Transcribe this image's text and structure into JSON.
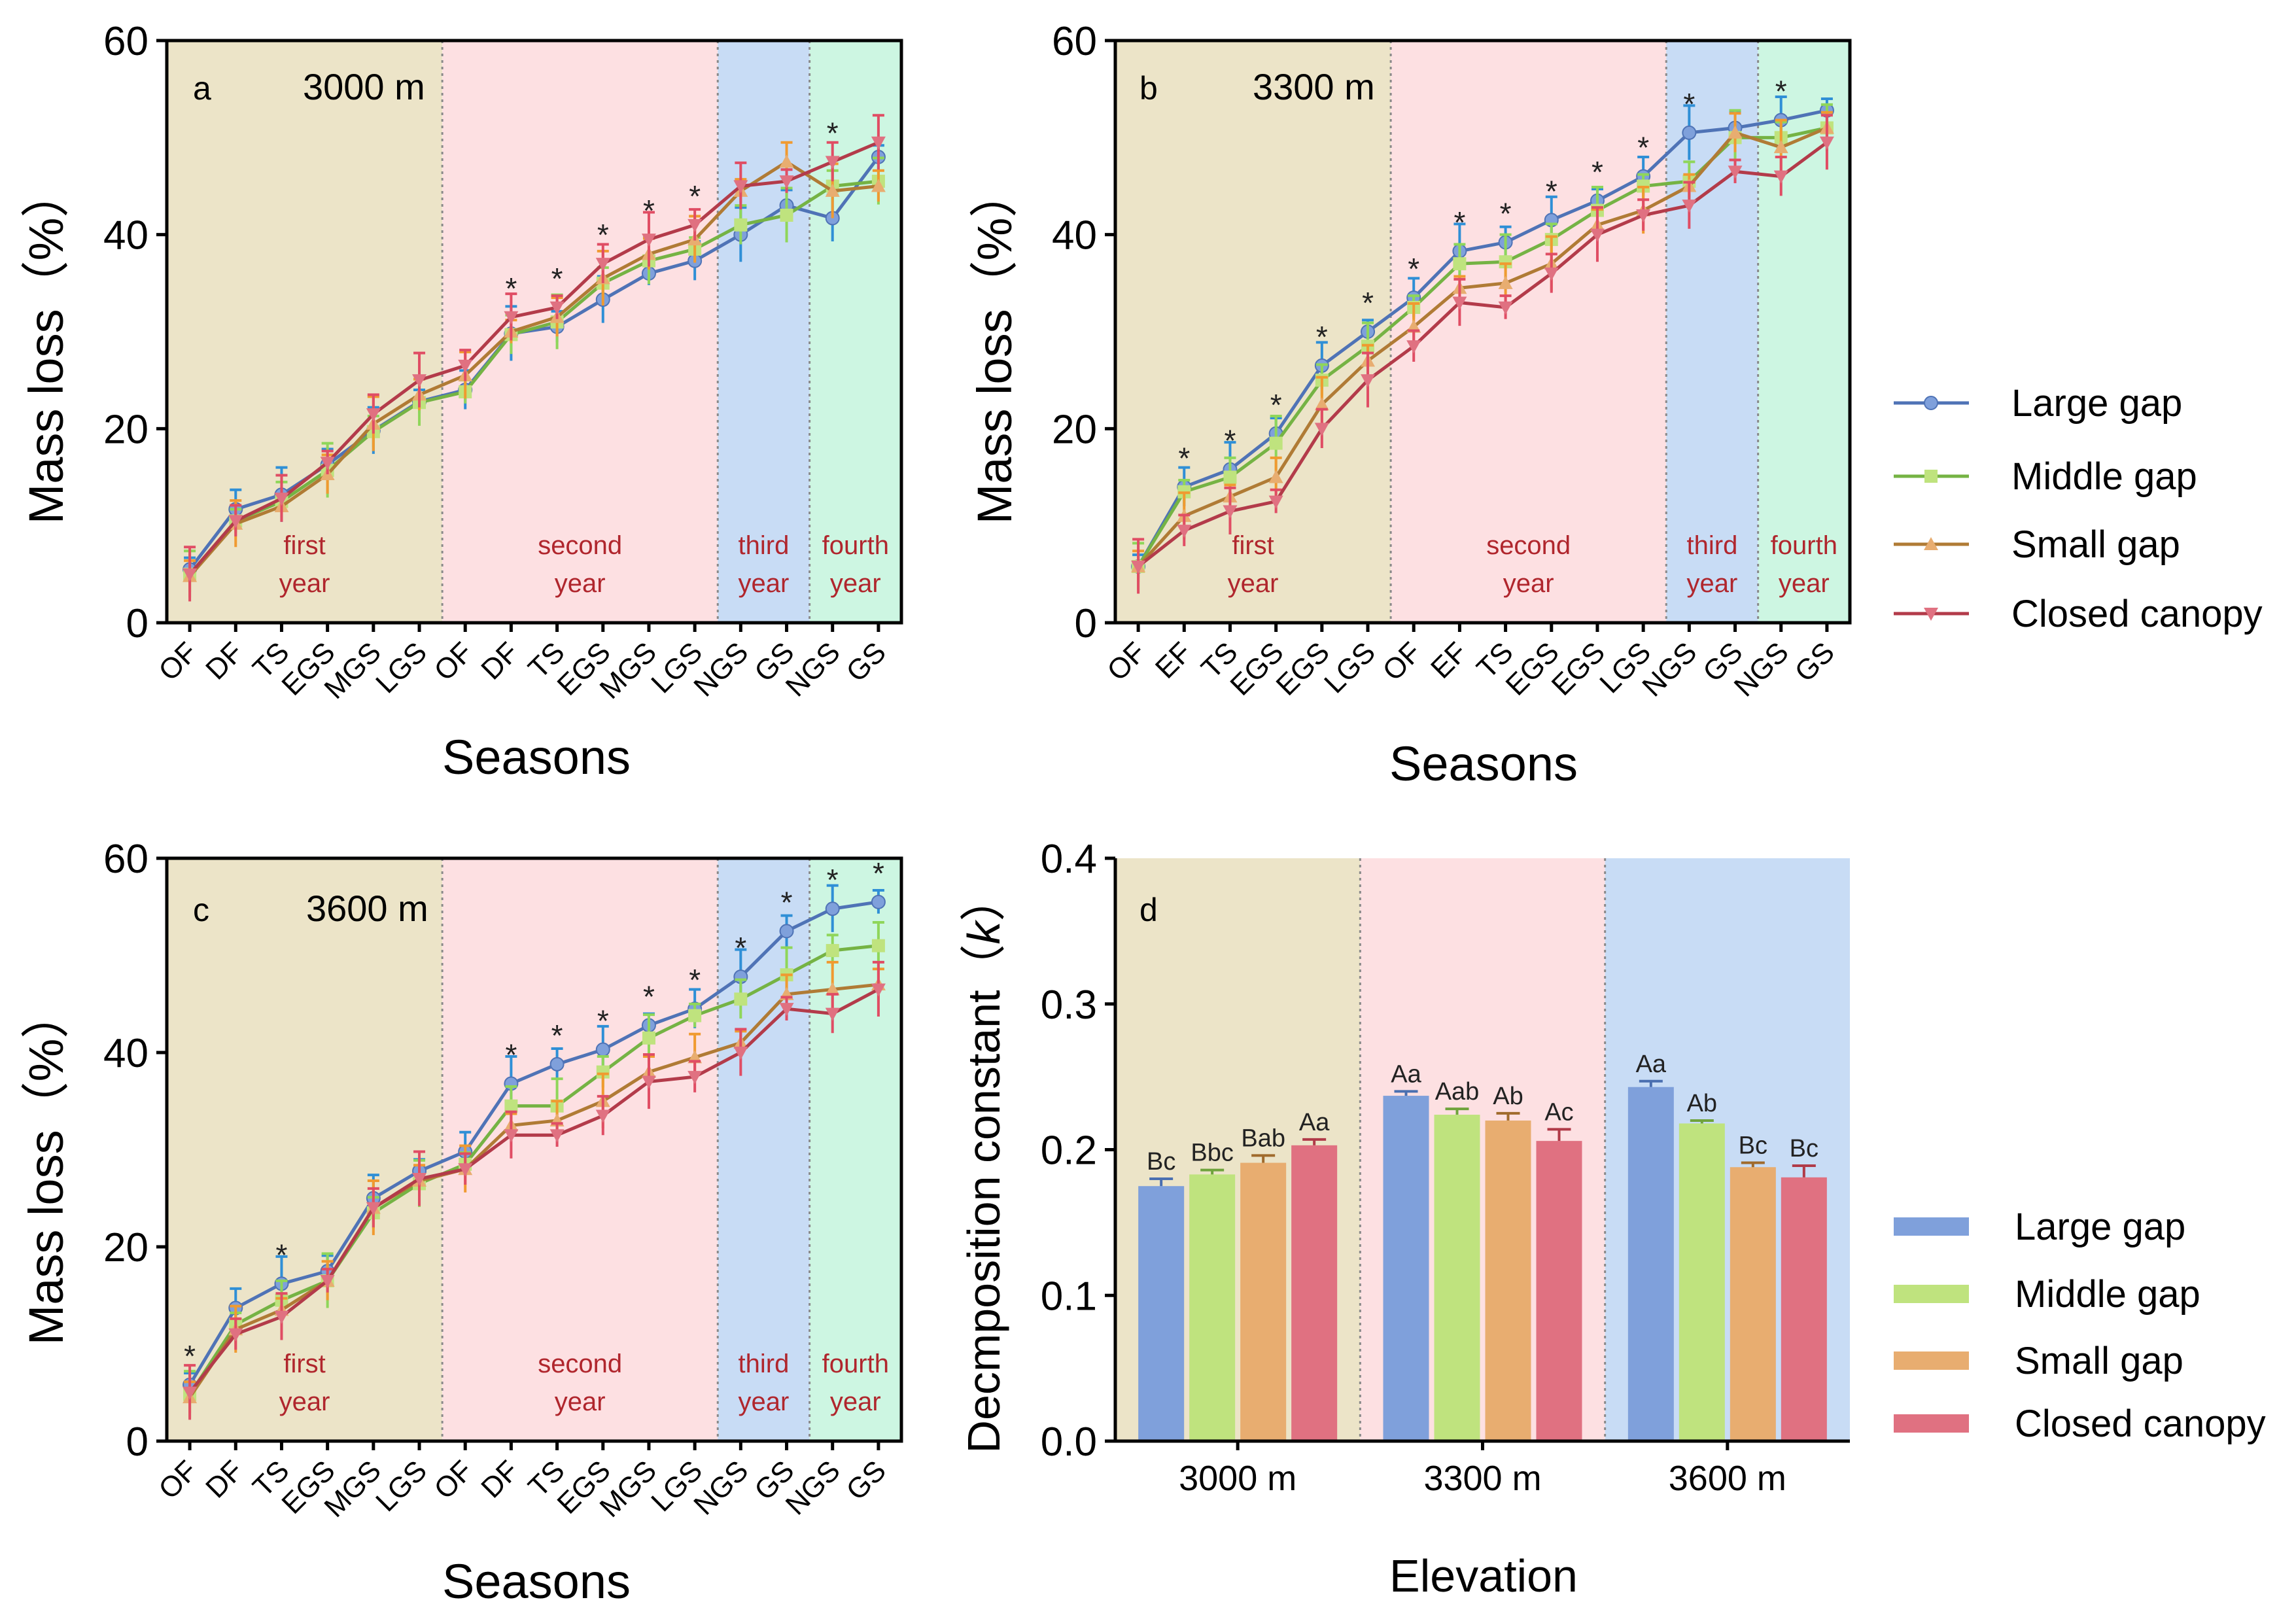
{
  "colors": {
    "large": "#4f73b6",
    "middle": "#75b344",
    "small": "#b07b35",
    "closed": "#b33b4a",
    "large_marker": "#7fa0db",
    "middle_marker": "#bfe37e",
    "small_marker": "#e8ad70",
    "closed_marker": "#e07181",
    "err_large": "#2f8fd6",
    "err_middle": "#8fd65a",
    "err_small": "#f09a30",
    "err_closed": "#e04d64",
    "band_first": "#ece4c8",
    "band_second": "#fde0e2",
    "band_third": "#c8dcf5",
    "band_fourth": "#cdf6e2",
    "year_text": "#b0262d"
  },
  "legend_top": [
    "Large gap",
    "Middle gap",
    "Small gap",
    "Closed canopy"
  ],
  "legend_bottom": [
    "Large gap",
    "Middle gap",
    "Small gap",
    "Closed canopy"
  ],
  "chart_data": [
    {
      "type": "line",
      "panel": "a",
      "elevation_label": "3000 m",
      "xlabel": "Seasons",
      "ylabel": "Mass loss（%）",
      "ylim": [
        0,
        60
      ],
      "yticks": [
        "0",
        "20",
        "40",
        "60"
      ],
      "categories": [
        "OF",
        "DF",
        "TS",
        "EGS",
        "MGS",
        "LGS",
        "OF",
        "DF",
        "TS",
        "EGS",
        "MGS",
        "LGS",
        "NGS",
        "GS",
        "NGS",
        "GS"
      ],
      "year_bands": [
        {
          "line1": "first",
          "line2": "year",
          "from": 0,
          "to": 5
        },
        {
          "line1": "second",
          "line2": "year",
          "from": 6,
          "to": 11
        },
        {
          "line1": "third",
          "line2": "year",
          "from": 12,
          "to": 13
        },
        {
          "line1": "fourth",
          "line2": "year",
          "from": 14,
          "to": 15
        }
      ],
      "series": [
        {
          "name": "Large gap",
          "values": [
            5.5,
            11.7,
            13.2,
            16.3,
            19.8,
            22.8,
            24.0,
            29.8,
            30.5,
            33.3,
            36.0,
            37.3,
            40.0,
            43.0,
            41.7,
            48.0
          ]
        },
        {
          "name": "Middle gap",
          "values": [
            5.0,
            10.5,
            12.5,
            15.7,
            19.7,
            22.7,
            23.8,
            29.7,
            31.0,
            35.0,
            37.3,
            38.5,
            41.0,
            42.0,
            45.0,
            45.5
          ]
        },
        {
          "name": "Small gap",
          "values": [
            4.8,
            10.2,
            12.0,
            15.3,
            20.5,
            23.5,
            25.5,
            30.0,
            31.5,
            35.5,
            38.0,
            39.5,
            44.5,
            47.5,
            44.5,
            45.0
          ]
        },
        {
          "name": "Closed canopy",
          "values": [
            5.0,
            10.5,
            12.8,
            16.5,
            21.5,
            25.0,
            26.5,
            31.5,
            32.5,
            37.0,
            39.5,
            41.0,
            45.0,
            45.5,
            47.5,
            49.5
          ]
        }
      ],
      "significant": [
        7,
        8,
        9,
        10,
        11,
        14
      ]
    },
    {
      "type": "line",
      "panel": "b",
      "elevation_label": "3300 m",
      "xlabel": "Seasons",
      "ylabel": "Mass loss（%）",
      "ylim": [
        0,
        60
      ],
      "yticks": [
        "0",
        "20",
        "40",
        "60"
      ],
      "categories": [
        "OF",
        "EF",
        "TS",
        "EGS",
        "EGS",
        "LGS",
        "OF",
        "EF",
        "TS",
        "EGS",
        "EGS",
        "LGS",
        "NGS",
        "GS",
        "NGS",
        "GS"
      ],
      "year_bands": [
        {
          "line1": "first",
          "line2": "year",
          "from": 0,
          "to": 5
        },
        {
          "line1": "second",
          "line2": "year",
          "from": 6,
          "to": 11
        },
        {
          "line1": "third",
          "line2": "year",
          "from": 12,
          "to": 13
        },
        {
          "line1": "fourth",
          "line2": "year",
          "from": 14,
          "to": 15
        }
      ],
      "series": [
        {
          "name": "Large gap",
          "values": [
            5.8,
            14.0,
            15.8,
            19.5,
            26.5,
            30.0,
            33.5,
            38.3,
            39.2,
            41.5,
            43.5,
            46.0,
            50.5,
            51.0,
            51.8,
            52.8
          ]
        },
        {
          "name": "Middle gap",
          "values": [
            5.8,
            13.5,
            15.0,
            18.5,
            25.0,
            28.5,
            32.5,
            37.0,
            37.2,
            39.5,
            42.5,
            45.0,
            45.5,
            50.0,
            50.0,
            51.0
          ]
        },
        {
          "name": "Small gap",
          "values": [
            5.8,
            11.0,
            13.0,
            15.0,
            22.5,
            27.0,
            30.5,
            34.5,
            35.0,
            37.0,
            41.0,
            42.5,
            45.0,
            50.5,
            49.0,
            51.0
          ]
        },
        {
          "name": "Closed canopy",
          "values": [
            5.8,
            9.5,
            11.5,
            12.5,
            20.0,
            25.0,
            28.5,
            33.0,
            32.5,
            36.0,
            40.0,
            42.0,
            43.0,
            46.5,
            46.0,
            49.5
          ]
        }
      ],
      "significant": [
        1,
        2,
        3,
        4,
        5,
        6,
        7,
        8,
        9,
        10,
        11,
        12,
        14
      ]
    },
    {
      "type": "line",
      "panel": "c",
      "elevation_label": "3600 m",
      "xlabel": "Seasons",
      "ylabel": "Mass loss（%）",
      "ylim": [
        0,
        60
      ],
      "yticks": [
        "0",
        "20",
        "40",
        "60"
      ],
      "categories": [
        "OF",
        "DF",
        "TS",
        "EGS",
        "MGS",
        "LGS",
        "OF",
        "DF",
        "TS",
        "EGS",
        "MGS",
        "LGS",
        "NGS",
        "GS",
        "NGS",
        "GS"
      ],
      "year_bands": [
        {
          "line1": "first",
          "line2": "year",
          "from": 0,
          "to": 5
        },
        {
          "line1": "second",
          "line2": "year",
          "from": 6,
          "to": 11
        },
        {
          "line1": "third",
          "line2": "year",
          "from": 12,
          "to": 13
        },
        {
          "line1": "fourth",
          "line2": "year",
          "from": 14,
          "to": 15
        }
      ],
      "series": [
        {
          "name": "Large gap",
          "values": [
            5.8,
            13.7,
            16.2,
            17.5,
            25.0,
            27.8,
            29.8,
            36.8,
            38.8,
            40.3,
            42.8,
            44.5,
            47.8,
            52.5,
            54.8,
            55.5
          ]
        },
        {
          "name": "Middle gap",
          "values": [
            4.8,
            12.0,
            14.5,
            16.5,
            23.5,
            26.5,
            28.5,
            34.5,
            34.5,
            38.0,
            41.5,
            43.8,
            45.5,
            48.0,
            50.5,
            51.0
          ]
        },
        {
          "name": "Small gap",
          "values": [
            4.5,
            11.5,
            13.5,
            16.5,
            24.0,
            26.8,
            28.0,
            32.5,
            33.0,
            35.0,
            38.0,
            39.5,
            41.0,
            46.0,
            46.5,
            47.0
          ]
        },
        {
          "name": "Closed canopy",
          "values": [
            5.0,
            11.0,
            12.8,
            16.5,
            24.0,
            27.0,
            28.0,
            31.5,
            31.5,
            33.5,
            37.0,
            37.5,
            40.0,
            44.5,
            44.0,
            46.5
          ]
        }
      ],
      "significant": [
        0,
        2,
        7,
        8,
        9,
        10,
        11,
        12,
        13,
        14,
        15
      ]
    },
    {
      "type": "bar",
      "panel": "d",
      "xlabel": "Elevation",
      "ylabel": "Decmposition constant（k）",
      "ylabel_plain": "Decmposition constant（",
      "ylabel_italic": "k",
      "ylabel_close": "）",
      "ylim": [
        0,
        0.4
      ],
      "yticks": [
        "0.0",
        "0.1",
        "0.2",
        "0.3",
        "0.4"
      ],
      "categories": [
        "3000 m",
        "3300 m",
        "3600 m"
      ],
      "series": [
        {
          "name": "Large gap",
          "values": [
            0.175,
            0.237,
            0.243
          ],
          "errors": [
            0.005,
            0.003,
            0.004
          ],
          "labels": [
            "Bc",
            "Aa",
            "Aa"
          ]
        },
        {
          "name": "Middle gap",
          "values": [
            0.183,
            0.224,
            0.218
          ],
          "errors": [
            0.003,
            0.004,
            0.002
          ],
          "labels": [
            "Bbc",
            "Aab",
            "Ab"
          ]
        },
        {
          "name": "Small gap",
          "values": [
            0.191,
            0.22,
            0.188
          ],
          "errors": [
            0.005,
            0.005,
            0.003
          ],
          "labels": [
            "Bab",
            "Ab",
            "Bc"
          ]
        },
        {
          "name": "Closed canopy",
          "values": [
            0.203,
            0.206,
            0.181
          ],
          "errors": [
            0.004,
            0.008,
            0.008
          ],
          "labels": [
            "Aa",
            "Ac",
            "Bc"
          ]
        }
      ]
    }
  ]
}
